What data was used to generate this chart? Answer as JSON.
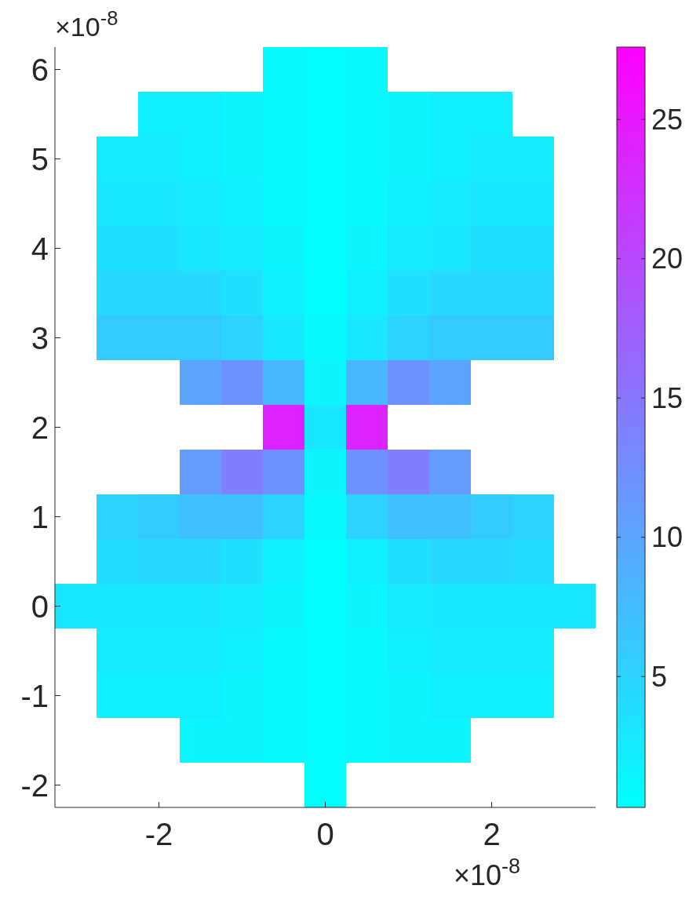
{
  "chart_data": {
    "type": "heatmap",
    "categories": [
      null,
      null,
      "-2",
      null,
      null,
      null,
      "0",
      null,
      null,
      null,
      "2",
      null,
      null
    ],
    "y_categories": [
      "6",
      null,
      "5",
      null,
      "4",
      null,
      "3",
      null,
      "2",
      null,
      "1",
      null,
      "0",
      null,
      "-1",
      null,
      "-2"
    ],
    "clim": [
      0.3,
      27.6
    ],
    "cticks": [
      5,
      10,
      15,
      20,
      25
    ],
    "annotations": [
      "×10$^{-8}$",
      "×10$^{-8}$"
    ],
    "cells": [
      [
        null,
        null,
        null,
        null,
        null,
        1,
        0.5,
        1,
        null,
        null,
        null,
        null,
        null
      ],
      [
        null,
        null,
        2,
        2,
        1.5,
        1,
        0.5,
        1,
        1.5,
        2,
        2,
        null,
        null
      ],
      [
        null,
        2.5,
        2.5,
        2,
        1.5,
        1,
        0.5,
        1,
        1.5,
        2,
        2.5,
        2.5,
        null
      ],
      [
        null,
        3,
        3,
        2.5,
        2,
        1,
        0.5,
        1,
        2,
        2.5,
        3,
        3,
        null
      ],
      [
        null,
        3.5,
        3.5,
        3,
        2.5,
        1.5,
        0.5,
        1.5,
        2.5,
        3,
        3.5,
        3.5,
        null
      ],
      [
        null,
        4.5,
        4.5,
        4.5,
        3.5,
        2,
        0.5,
        2,
        3.5,
        4.5,
        4.5,
        4.5,
        null
      ],
      [
        null,
        6,
        6,
        6,
        5,
        3,
        1,
        3,
        5,
        6,
        6,
        6,
        null
      ],
      [
        null,
        null,
        null,
        10,
        12,
        8,
        1.5,
        8,
        12,
        10,
        null,
        null,
        null
      ],
      [
        null,
        null,
        null,
        null,
        null,
        24,
        3,
        24,
        null,
        null,
        null,
        null,
        null
      ],
      [
        null,
        null,
        null,
        11,
        14,
        12,
        1.5,
        12,
        14,
        11,
        null,
        null,
        null
      ],
      [
        null,
        5,
        6,
        7,
        7,
        5,
        1,
        5,
        7,
        7,
        6,
        5,
        null
      ],
      [
        null,
        4,
        4.5,
        4.5,
        3.5,
        2,
        0.5,
        2,
        3.5,
        4.5,
        4.5,
        4,
        null
      ],
      [
        3,
        3,
        3,
        3,
        2.5,
        1.5,
        0.5,
        1.5,
        2.5,
        3,
        3,
        3,
        3
      ],
      [
        null,
        2.5,
        2.5,
        2.5,
        2,
        1,
        0.5,
        1,
        2,
        2.5,
        2.5,
        2.5,
        null
      ],
      [
        null,
        2,
        2,
        2,
        1.5,
        1,
        0.5,
        1,
        1.5,
        2,
        2,
        2,
        null
      ],
      [
        null,
        null,
        null,
        1.5,
        1.5,
        1,
        0.5,
        1,
        1.5,
        1.5,
        null,
        null,
        null
      ],
      [
        null,
        null,
        null,
        null,
        null,
        null,
        0.5,
        null,
        null,
        null,
        null,
        null,
        null
      ]
    ]
  }
}
